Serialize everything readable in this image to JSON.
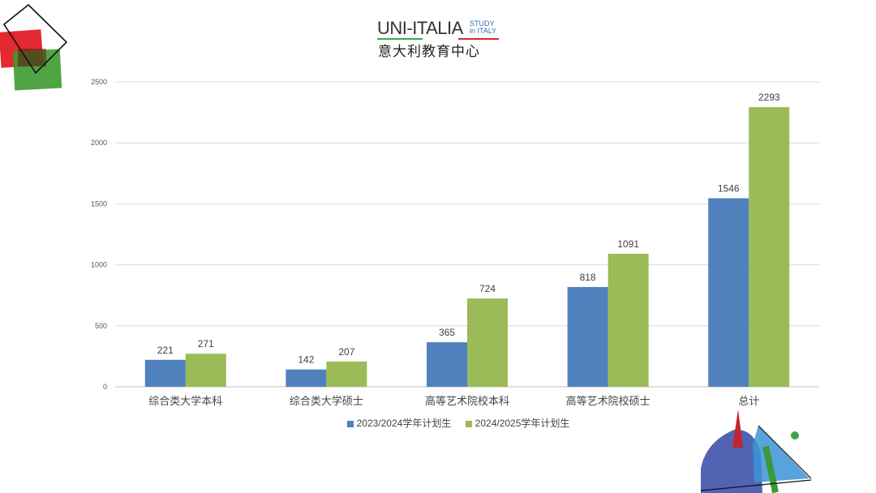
{
  "logo": {
    "main": "UNI-ITALIA",
    "study_line1": "STUDY",
    "study_line2": "in ITALY",
    "subtitle": "意大利教育中心"
  },
  "chart_data": {
    "type": "bar",
    "categories": [
      "综合类大学本科",
      "综合类大学硕士",
      "高等艺术院校本科",
      "高等艺术院校硕士",
      "总计"
    ],
    "series": [
      {
        "name": "2023/2024学年计划生",
        "color": "#4f81bd",
        "values": [
          221,
          142,
          365,
          818,
          1546
        ]
      },
      {
        "name": "2024/2025学年计划生",
        "color": "#9bbb59",
        "values": [
          271,
          207,
          724,
          1091,
          2293
        ]
      }
    ],
    "ylim": [
      0,
      2500
    ],
    "yticks": [
      0,
      500,
      1000,
      1500,
      2000,
      2500
    ],
    "grid": true,
    "legend_position": "bottom",
    "title": "",
    "xlabel": "",
    "ylabel": ""
  }
}
